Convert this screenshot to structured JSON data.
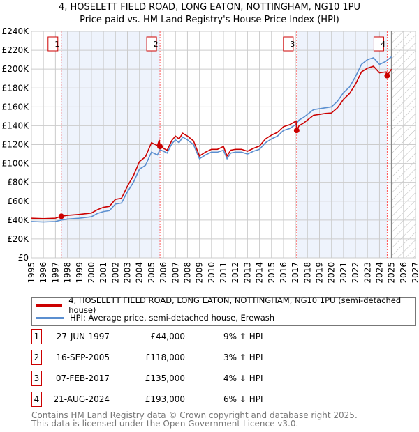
{
  "chart_data": {
    "type": "line",
    "title": "4, HOSELETT FIELD ROAD, LONG EATON, NOTTINGHAM, NG10 1PU",
    "subtitle": "Price paid vs. HM Land Registry's House Price Index (HPI)",
    "xlim": [
      1995,
      2027
    ],
    "ylim": [
      0,
      240000
    ],
    "x_ticks": [
      "1995",
      "1996",
      "1997",
      "1998",
      "1999",
      "2000",
      "2001",
      "2002",
      "2003",
      "2004",
      "2005",
      "2006",
      "2007",
      "2008",
      "2009",
      "2010",
      "2011",
      "2012",
      "2013",
      "2014",
      "2015",
      "2016",
      "2017",
      "2018",
      "2019",
      "2020",
      "2021",
      "2022",
      "2023",
      "2024",
      "2025",
      "2026",
      "2027"
    ],
    "y_ticks": [
      "£0",
      "£20K",
      "£40K",
      "£60K",
      "£80K",
      "£100K",
      "£120K",
      "£140K",
      "£160K",
      "£180K",
      "£200K",
      "£220K",
      "£240K"
    ],
    "grid": true,
    "forecast_from": 2025,
    "series": [
      {
        "name": "4, HOSELETT FIELD ROAD, LONG EATON, NOTTINGHAM, NG10 1PU (semi-detached house)",
        "color": "#cc0000",
        "points": [
          [
            1995,
            42
          ],
          [
            1996,
            41.5
          ],
          [
            1997,
            42
          ],
          [
            1997.5,
            44
          ],
          [
            1998,
            45
          ],
          [
            1999,
            46
          ],
          [
            2000,
            47.5
          ],
          [
            2000.5,
            51
          ],
          [
            2001,
            53.5
          ],
          [
            2001.5,
            54.5
          ],
          [
            2002,
            62
          ],
          [
            2002.5,
            63
          ],
          [
            2003,
            76
          ],
          [
            2003.5,
            87
          ],
          [
            2004,
            102
          ],
          [
            2004.5,
            107
          ],
          [
            2005,
            122
          ],
          [
            2005.5,
            119
          ],
          [
            2005.65,
            125
          ],
          [
            2005.71,
            118
          ],
          [
            2006,
            116
          ],
          [
            2006.3,
            114
          ],
          [
            2006.7,
            124.5
          ],
          [
            2007,
            129
          ],
          [
            2007.3,
            126
          ],
          [
            2007.6,
            132
          ],
          [
            2008,
            129
          ],
          [
            2008.5,
            124
          ],
          [
            2009,
            108
          ],
          [
            2009.5,
            112
          ],
          [
            2010,
            115
          ],
          [
            2010.5,
            115
          ],
          [
            2011,
            118
          ],
          [
            2011.3,
            108
          ],
          [
            2011.6,
            114
          ],
          [
            2012,
            115
          ],
          [
            2012.5,
            115
          ],
          [
            2013,
            113
          ],
          [
            2013.5,
            116
          ],
          [
            2014,
            118.5
          ],
          [
            2014.5,
            126
          ],
          [
            2015,
            130
          ],
          [
            2015.5,
            133
          ],
          [
            2016,
            139
          ],
          [
            2016.5,
            141
          ],
          [
            2017.05,
            145
          ],
          [
            2017.1,
            135
          ],
          [
            2017.3,
            140
          ],
          [
            2017.7,
            143
          ],
          [
            2018,
            146
          ],
          [
            2018.5,
            151
          ],
          [
            2019,
            152
          ],
          [
            2019.5,
            153
          ],
          [
            2020,
            153.5
          ],
          [
            2020.5,
            159
          ],
          [
            2021,
            168
          ],
          [
            2021.5,
            174
          ],
          [
            2022,
            184
          ],
          [
            2022.5,
            197
          ],
          [
            2023,
            201
          ],
          [
            2023.5,
            203
          ],
          [
            2024,
            196
          ],
          [
            2024.55,
            197
          ],
          [
            2024.63,
            193
          ],
          [
            2025,
            200
          ]
        ]
      },
      {
        "name": "HPI: Average price, semi-detached house, Erewash",
        "color": "#5b8fd0",
        "points": [
          [
            1995,
            38.5
          ],
          [
            1996,
            38
          ],
          [
            1997,
            38.5
          ],
          [
            1997.5,
            40
          ],
          [
            1998,
            41
          ],
          [
            1999,
            42
          ],
          [
            2000,
            43.5
          ],
          [
            2000.5,
            47
          ],
          [
            2001,
            49
          ],
          [
            2001.5,
            50
          ],
          [
            2002,
            57
          ],
          [
            2002.5,
            58
          ],
          [
            2003,
            70
          ],
          [
            2003.5,
            80
          ],
          [
            2004,
            94
          ],
          [
            2004.5,
            98
          ],
          [
            2005,
            112
          ],
          [
            2005.5,
            109
          ],
          [
            2005.7,
            114.5
          ],
          [
            2006,
            113
          ],
          [
            2006.3,
            111
          ],
          [
            2006.7,
            121
          ],
          [
            2007,
            125
          ],
          [
            2007.3,
            122
          ],
          [
            2007.6,
            128
          ],
          [
            2008,
            125
          ],
          [
            2008.5,
            120
          ],
          [
            2009,
            105
          ],
          [
            2009.5,
            109
          ],
          [
            2010,
            112
          ],
          [
            2010.5,
            112
          ],
          [
            2011,
            114
          ],
          [
            2011.3,
            105
          ],
          [
            2011.6,
            111
          ],
          [
            2012,
            112
          ],
          [
            2012.5,
            112
          ],
          [
            2013,
            110
          ],
          [
            2013.5,
            113
          ],
          [
            2014,
            115
          ],
          [
            2014.5,
            122
          ],
          [
            2015,
            126
          ],
          [
            2015.5,
            129
          ],
          [
            2016,
            135
          ],
          [
            2016.5,
            137
          ],
          [
            2017,
            141
          ],
          [
            2017.3,
            146
          ],
          [
            2017.7,
            149
          ],
          [
            2018,
            152
          ],
          [
            2018.5,
            157
          ],
          [
            2019,
            158
          ],
          [
            2019.5,
            159
          ],
          [
            2020,
            160
          ],
          [
            2020.5,
            166
          ],
          [
            2021,
            175
          ],
          [
            2021.5,
            181
          ],
          [
            2022,
            192
          ],
          [
            2022.5,
            205
          ],
          [
            2023,
            210
          ],
          [
            2023.5,
            212
          ],
          [
            2024,
            205
          ],
          [
            2024.5,
            208
          ],
          [
            2025,
            213
          ]
        ]
      }
    ],
    "sales": [
      {
        "n": "1",
        "x": 1997.49,
        "price": 44000,
        "date": "27-JUN-1997",
        "price_label": "£44,000",
        "hpi": "9% ↑ HPI"
      },
      {
        "n": "2",
        "x": 2005.71,
        "price": 118000,
        "date": "16-SEP-2005",
        "price_label": "£118,000",
        "hpi": "3% ↑ HPI"
      },
      {
        "n": "3",
        "x": 2017.1,
        "price": 135000,
        "date": "07-FEB-2017",
        "price_label": "£135,000",
        "hpi": "4% ↓ HPI"
      },
      {
        "n": "4",
        "x": 2024.64,
        "price": 193000,
        "date": "21-AUG-2024",
        "price_label": "£193,000",
        "hpi": "6% ↓ HPI"
      }
    ]
  },
  "footer": {
    "line1": "Contains HM Land Registry data © Crown copyright and database right 2025.",
    "line2": "This data is licensed under the Open Government Licence v3.0."
  }
}
